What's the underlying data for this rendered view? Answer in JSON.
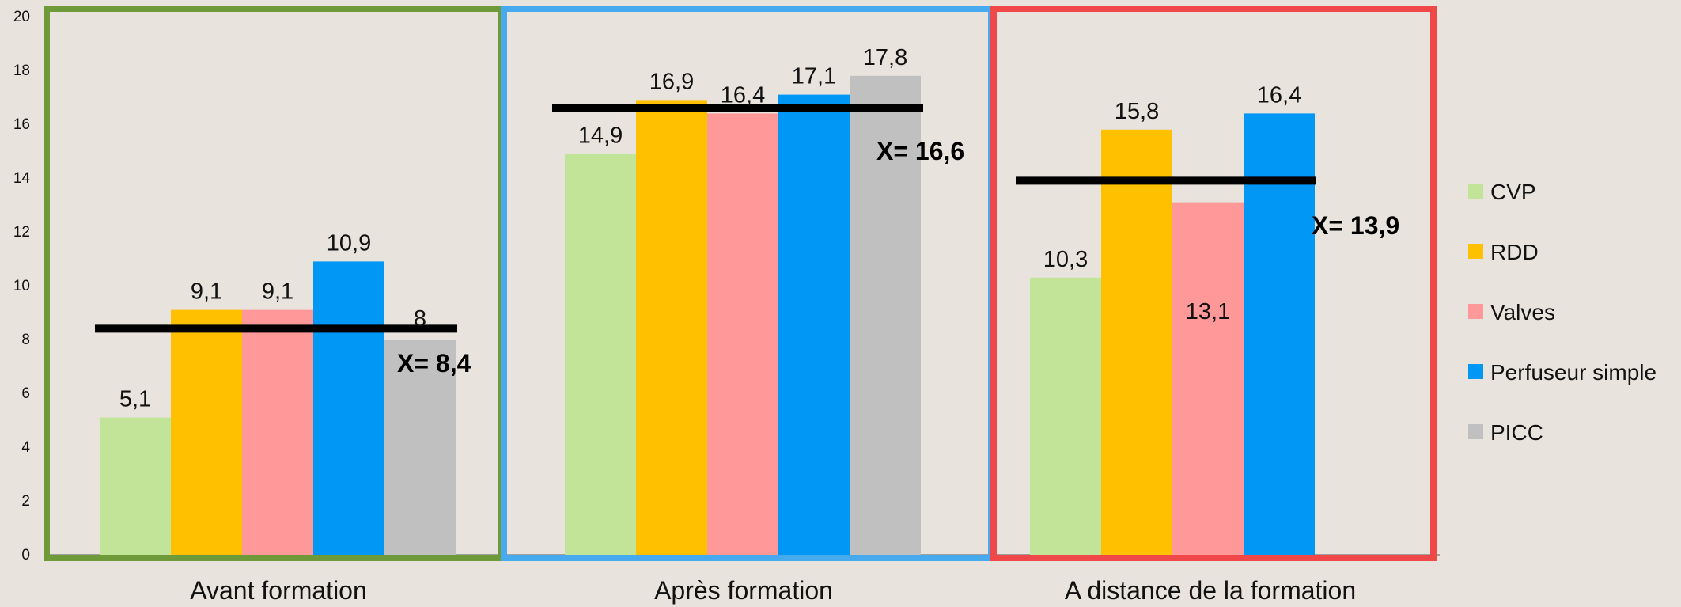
{
  "chart_data": {
    "type": "bar",
    "title": "",
    "xlabel": "",
    "ylabel": "",
    "ylim": [
      0,
      20
    ],
    "yticks": [
      0,
      2,
      4,
      6,
      8,
      10,
      12,
      14,
      16,
      18,
      20
    ],
    "grid": false,
    "legend_position": "right",
    "categories": [
      "Avant formation",
      "Après formation",
      "A distance de la formation"
    ],
    "series": [
      {
        "name": "CVP",
        "color": "#c1e498",
        "values": [
          5.1,
          14.9,
          10.3
        ],
        "labels": [
          "5,1",
          "14,9",
          "10,3"
        ]
      },
      {
        "name": "RDD",
        "color": "#ffc000",
        "values": [
          9.1,
          16.9,
          15.8
        ],
        "labels": [
          "9,1",
          "16,9",
          "15,8"
        ]
      },
      {
        "name": "Valves",
        "color": "#ff9999",
        "values": [
          9.1,
          16.4,
          13.1
        ],
        "labels": [
          "9,1",
          "16,4",
          "13,1"
        ]
      },
      {
        "name": "Perfuseur simple",
        "color": "#0097f5",
        "values": [
          10.9,
          17.1,
          16.4
        ],
        "labels": [
          "10,9",
          "17,1",
          "16,4"
        ]
      },
      {
        "name": "PICC",
        "color": "#c0c0c0",
        "values": [
          8,
          17.8,
          null
        ],
        "labels": [
          "8",
          "17,8",
          ""
        ]
      }
    ],
    "means": [
      {
        "value": 8.4,
        "label": "X= 8,4"
      },
      {
        "value": 16.6,
        "label": "X= 16,6"
      },
      {
        "value": 13.9,
        "label": "X= 13,9"
      }
    ],
    "group_frame_colors": [
      "#6f9a3a",
      "#47aaee",
      "#f04848"
    ]
  }
}
